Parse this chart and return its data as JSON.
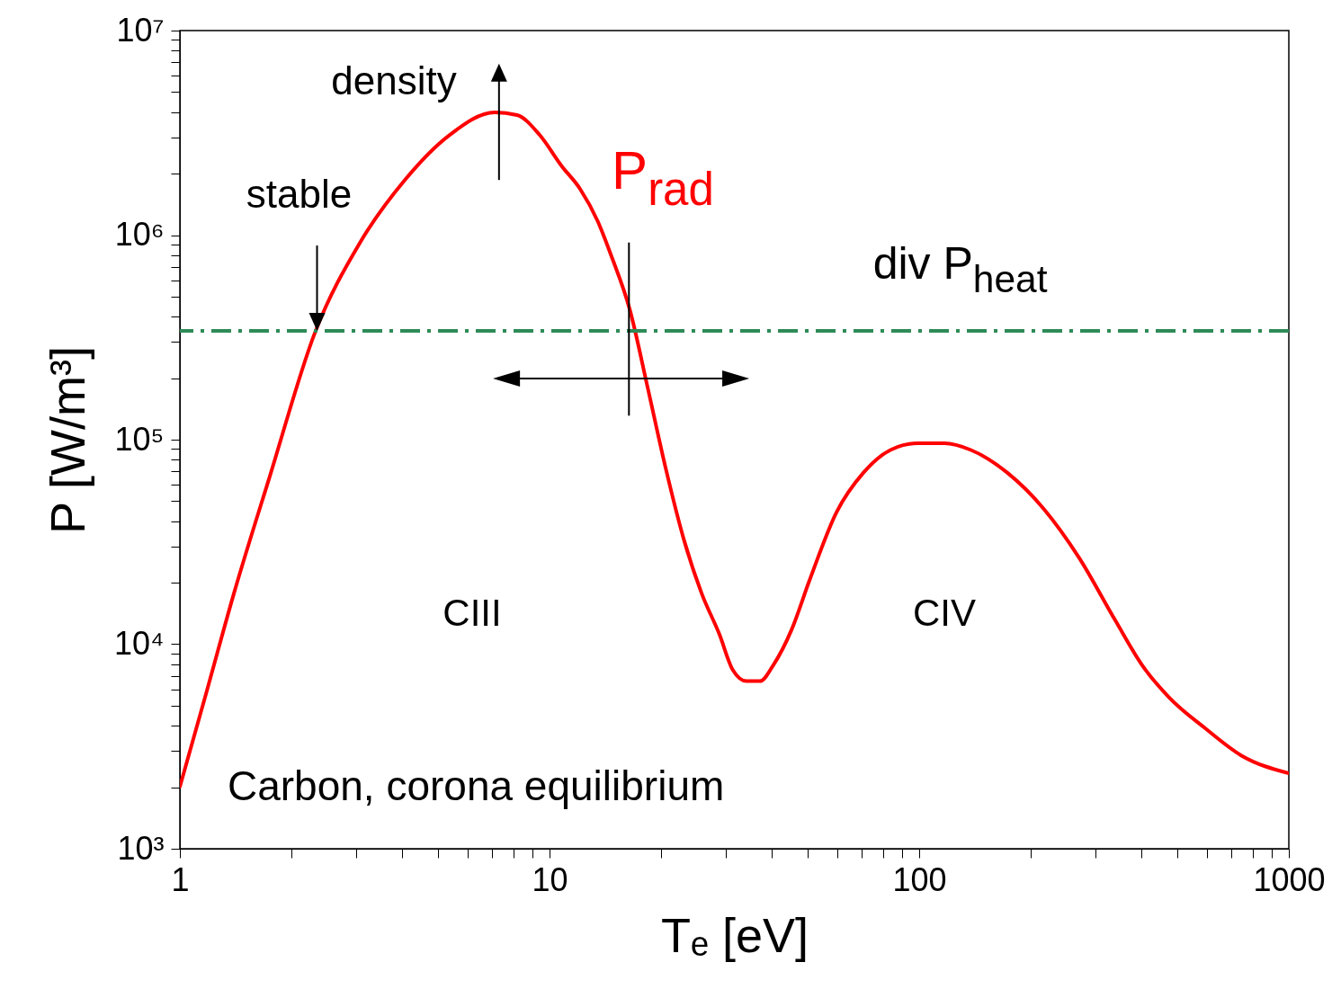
{
  "chart_data": {
    "type": "line",
    "xlabel": "Tₑ [eV]",
    "ylabel": "P [W/m³]",
    "x": [
      1,
      1.18,
      1.4,
      1.75,
      2.32,
      3.07,
      4.06,
      5.37,
      7.11,
      8.17,
      9.4,
      10.8,
      12.1,
      13.5,
      14.7,
      16.5,
      18.4,
      20.6,
      23.1,
      25.8,
      28.8,
      31.3,
      34.1,
      37.1,
      40.3,
      45.2,
      50.5,
      59.7,
      70.7,
      83.6,
      98.9,
      117,
      138,
      173,
      217,
      271,
      339,
      401,
      474,
      594,
      743,
      1000
    ],
    "series": [
      {
        "name": "P$_{rad}$",
        "color": "#ff0000",
        "values": [
          2010,
          5820,
          17700,
          66000,
          334000,
          918000,
          1860000,
          3090000,
          3980000,
          3860000,
          3090000,
          2170000,
          1680000,
          1170000,
          790000,
          430000,
          182000,
          73000,
          32400,
          17700,
          11200,
          7500,
          6600,
          6600,
          7900,
          11800,
          20500,
          44000,
          69000,
          89000,
          96000,
          96000,
          89000,
          69000,
          46000,
          26400,
          13100,
          7900,
          5500,
          3880,
          2860,
          2340
        ]
      }
    ],
    "log": "xy",
    "grid": false,
    "xlim": [
      1,
      1000
    ],
    "xticks": [
      1,
      {
        "value": 2,
        "label": null
      },
      {
        "value": 3,
        "label": null
      },
      {
        "value": 4,
        "label": null
      },
      {
        "value": 5,
        "label": null
      },
      {
        "value": 6,
        "label": null
      },
      {
        "value": 7,
        "label": null
      },
      {
        "value": 8,
        "label": null
      },
      {
        "value": 9,
        "label": null
      },
      10,
      {
        "value": 20,
        "label": null
      },
      {
        "value": 30,
        "label": null
      },
      {
        "value": 40,
        "label": null
      },
      {
        "value": 50,
        "label": null
      },
      {
        "value": 60,
        "label": null
      },
      {
        "value": 70,
        "label": null
      },
      {
        "value": 80,
        "label": null
      },
      {
        "value": 90,
        "label": null
      },
      100,
      {
        "value": 200,
        "label": null
      },
      {
        "value": 300,
        "label": null
      },
      {
        "value": 400,
        "label": null
      },
      {
        "value": 500,
        "label": null
      },
      {
        "value": 600,
        "label": null
      },
      {
        "value": 700,
        "label": null
      },
      {
        "value": 800,
        "label": null
      },
      {
        "value": 900,
        "label": null
      },
      1000
    ],
    "ylim": [
      1000,
      10000000
    ],
    "yticks": [
      {
        "value": 1000,
        "label": "10³"
      },
      {
        "value": 2000,
        "label": null
      },
      {
        "value": 3000,
        "label": null
      },
      {
        "value": 4000,
        "label": null
      },
      {
        "value": 5000,
        "label": null
      },
      {
        "value": 6000,
        "label": null
      },
      {
        "value": 7000,
        "label": null
      },
      {
        "value": 8000,
        "label": null
      },
      {
        "value": 9000,
        "label": null
      },
      {
        "value": 10000,
        "label": "10⁴"
      },
      {
        "value": 20000,
        "label": null
      },
      {
        "value": 30000,
        "label": null
      },
      {
        "value": 40000,
        "label": null
      },
      {
        "value": 50000,
        "label": null
      },
      {
        "value": 60000,
        "label": null
      },
      {
        "value": 70000,
        "label": null
      },
      {
        "value": 80000,
        "label": null
      },
      {
        "value": 90000,
        "label": null
      },
      {
        "value": 100000,
        "label": "10⁵"
      },
      {
        "value": 200000,
        "label": null
      },
      {
        "value": 300000,
        "label": null
      },
      {
        "value": 400000,
        "label": null
      },
      {
        "value": 500000,
        "label": null
      },
      {
        "value": 600000,
        "label": null
      },
      {
        "value": 700000,
        "label": null
      },
      {
        "value": 800000,
        "label": null
      },
      {
        "value": 900000,
        "label": null
      },
      {
        "value": 1000000,
        "label": "10⁶"
      },
      {
        "value": 2000000,
        "label": null
      },
      {
        "value": 3000000,
        "label": null
      },
      {
        "value": 4000000,
        "label": null
      },
      {
        "value": 5000000,
        "label": null
      },
      {
        "value": 6000000,
        "label": null
      },
      {
        "value": 7000000,
        "label": null
      },
      {
        "value": 8000000,
        "label": null
      },
      {
        "value": 9000000,
        "label": null
      },
      {
        "value": 10000000,
        "label": "10⁷"
      }
    ],
    "ref_lines": [
      {
        "axis": "y",
        "value": 340000,
        "label": "div P$_{heat}$",
        "color": "#2e8b57",
        "line_style": "dashed"
      }
    ],
    "annotations": [
      "density",
      {
        "text": "stable",
        "x": 2.35,
        "y": 340000
      },
      "CIII",
      "CIV",
      "Carbon, corona equilibrium"
    ]
  }
}
